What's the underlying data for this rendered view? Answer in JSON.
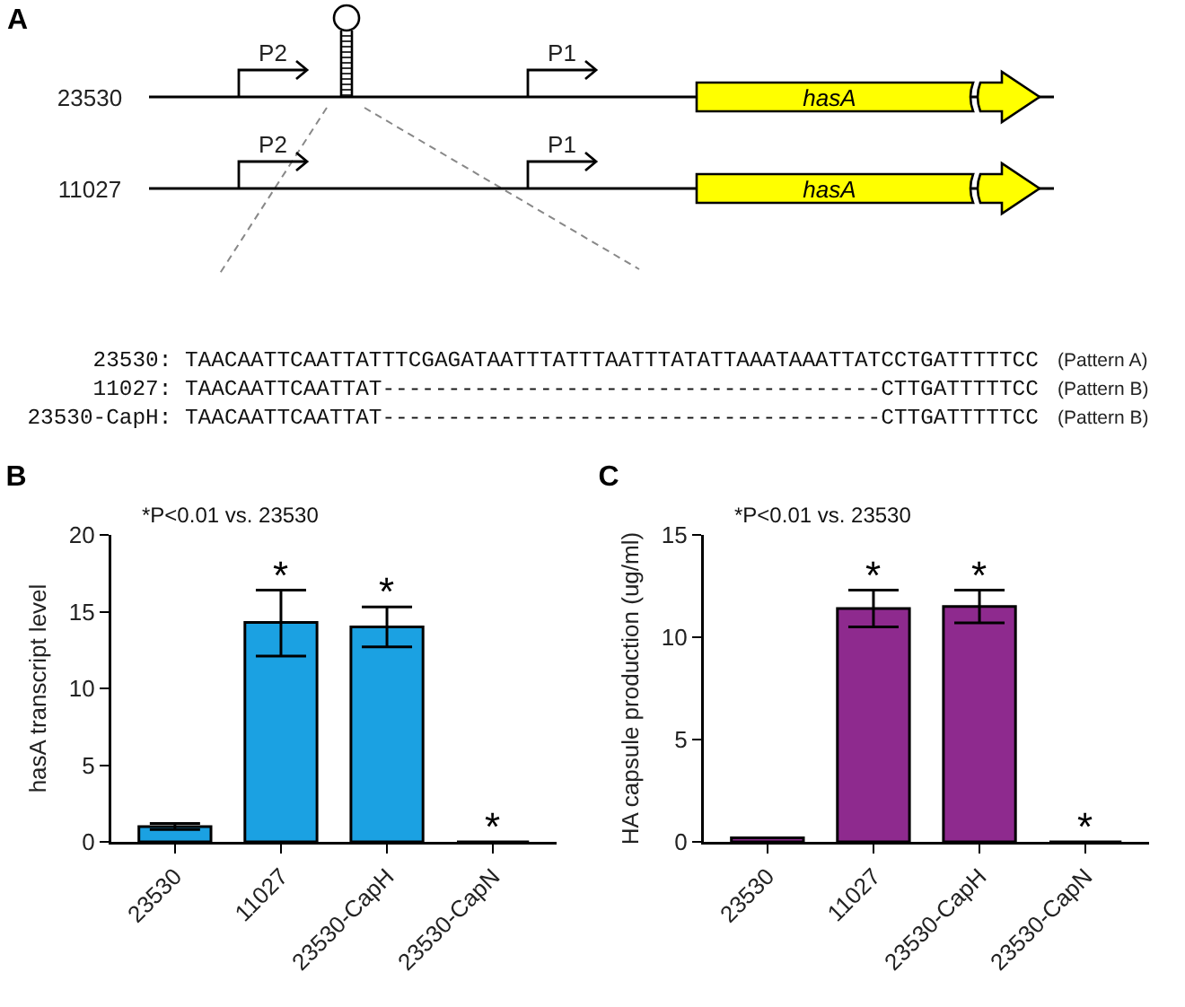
{
  "chart_data": [
    {
      "type": "other",
      "title": "A",
      "annotations": [
        "23530",
        "P2",
        "P1",
        "hasA",
        "11027",
        "P2",
        "P1",
        "hasA",
        "23530: TAACAATTCAATTATTTCGAGATAATTTATTTAATTTATATTAAATAAATTATCCTGATTTTTCC",
        "(Pattern A)",
        "11027: TAACAATTCAATTAT--------------------------------------CTTGATTTTTCC",
        "(Pattern B)",
        "23530-CapH: TAACAATTCAATTAT--------------------------------------CTTGATTTTTCC",
        "(Pattern B)"
      ]
    },
    {
      "type": "bar",
      "title": "B",
      "ylabel": "hasA transcript level",
      "categories": [
        "23530",
        "11027",
        "23530-CapH",
        "23530-CapN"
      ],
      "values": [
        1.0,
        14.3,
        14.0,
        0
      ],
      "errors": [
        0.2,
        [
          12.1,
          16.4
        ],
        [
          12.7,
          15.3
        ],
        null
      ],
      "color": "#1ba1e2",
      "ylim": [
        0,
        20
      ],
      "yticks": [
        0,
        5,
        10,
        15,
        20
      ],
      "grid": false,
      "annotations": [
        "*P<0.01 vs. 23530",
        "*",
        "*",
        "*"
      ]
    },
    {
      "type": "bar",
      "title": "C",
      "ylabel": "HA capsule production (ug/ml)",
      "categories": [
        "23530",
        "11027",
        "23530-CapH",
        "23530-CapN"
      ],
      "values": [
        0.2,
        11.4,
        11.5,
        0
      ],
      "errors": [
        null,
        [
          10.5,
          12.3
        ],
        [
          10.7,
          12.3
        ],
        null
      ],
      "color": "#8e2a8e",
      "ylim": [
        0,
        15
      ],
      "yticks": [
        0,
        5,
        10,
        15
      ],
      "grid": false,
      "annotations": [
        "*P<0.01 vs. 23530",
        "*",
        "*",
        "*"
      ]
    }
  ]
}
